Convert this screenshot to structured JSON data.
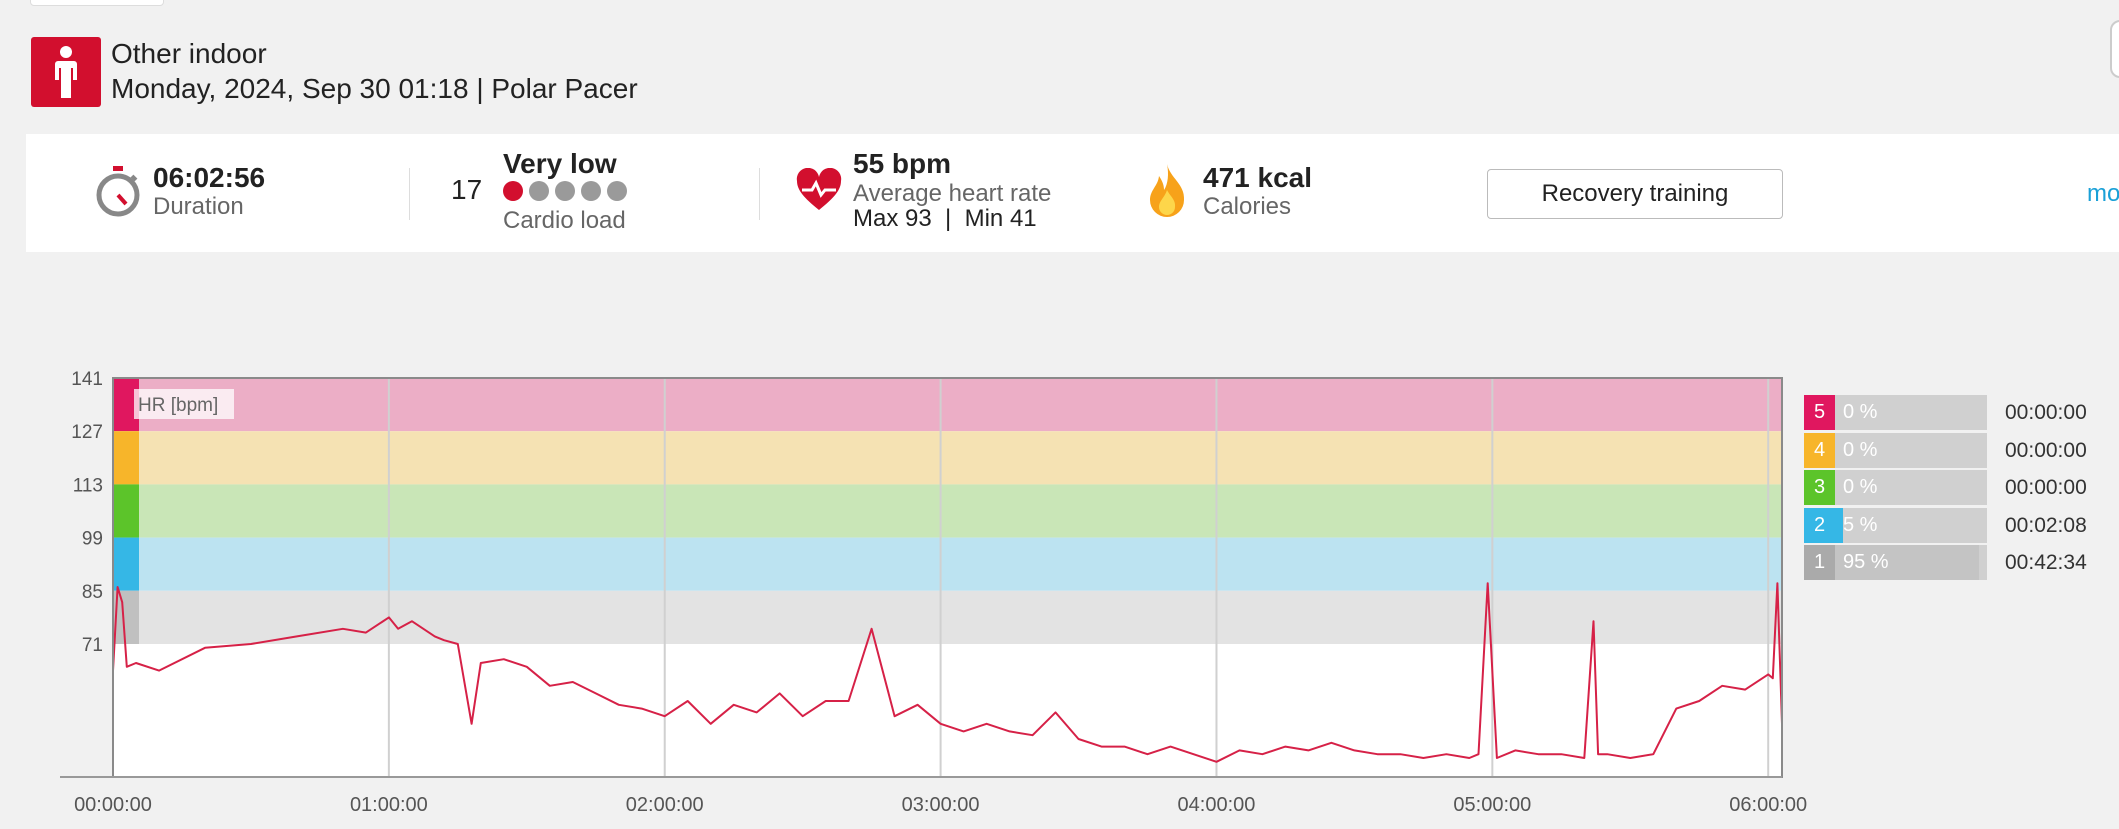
{
  "activity": {
    "sport": "Other indoor",
    "subtitle": "Monday, 2024, Sep 30 01:18 | Polar Pacer"
  },
  "summary": {
    "duration_value": "06:02:56",
    "duration_label": "Duration",
    "cardio_load_value": "17",
    "cardio_load_level": "Very low",
    "cardio_load_label": "Cardio load",
    "cardio_load_dots_filled": 1,
    "cardio_load_dots_total": 5,
    "hr_value": "55 bpm",
    "hr_label": "Average heart rate",
    "hr_minmax": "Max 93  |  Min 41",
    "calories_value": "471 kcal",
    "calories_label": "Calories",
    "training_benefit": "Recovery training",
    "more_link": "mo"
  },
  "colors": {
    "accent_red": "#d20f2e",
    "zone5": "#e0175f",
    "zone4": "#f7b52a",
    "zone3": "#5cc42a",
    "zone2": "#35b7e6",
    "zone1": "#c0c0c0",
    "hr_line": "#d62147"
  },
  "chart_data": {
    "type": "line",
    "title": "",
    "ylabel": "HR [bpm]",
    "xlabel": "",
    "y_ticks": [
      141,
      127,
      113,
      99,
      85,
      71
    ],
    "x_tick_labels": [
      "00:00:00",
      "01:00:00",
      "02:00:00",
      "03:00:00",
      "04:00:00",
      "05:00:00",
      "06:00:00"
    ],
    "x_range_min": [
      0,
      363
    ],
    "ylim": [
      36,
      141
    ],
    "zone_bands": [
      {
        "zone": 5,
        "from": 127,
        "to": 141
      },
      {
        "zone": 4,
        "from": 113,
        "to": 127
      },
      {
        "zone": 3,
        "from": 99,
        "to": 113
      },
      {
        "zone": 2,
        "from": 85,
        "to": 99
      },
      {
        "zone": 1,
        "from": 71,
        "to": 85
      }
    ],
    "series": [
      {
        "name": "HR",
        "x_min": [
          0,
          1,
          2,
          3,
          5,
          10,
          20,
          30,
          40,
          50,
          55,
          60,
          62,
          65,
          70,
          72,
          75,
          78,
          80,
          85,
          90,
          95,
          100,
          105,
          110,
          115,
          120,
          125,
          130,
          135,
          140,
          145,
          150,
          155,
          160,
          165,
          170,
          175,
          180,
          185,
          190,
          195,
          200,
          205,
          210,
          215,
          220,
          225,
          230,
          235,
          240,
          245,
          250,
          255,
          260,
          265,
          270,
          275,
          280,
          285,
          290,
          295,
          297,
          299,
          301,
          305,
          310,
          315,
          320,
          322,
          323,
          325,
          330,
          335,
          340,
          345,
          350,
          355,
          360,
          361,
          362,
          363
        ],
        "values": [
          64,
          86,
          82,
          65,
          66,
          64,
          70,
          71,
          73,
          75,
          74,
          78,
          75,
          77,
          73,
          72,
          71,
          50,
          66,
          67,
          65,
          60,
          61,
          58,
          55,
          54,
          52,
          56,
          50,
          55,
          53,
          58,
          52,
          56,
          56,
          75,
          52,
          55,
          50,
          48,
          50,
          48,
          47,
          53,
          46,
          44,
          44,
          42,
          44,
          42,
          40,
          43,
          42,
          44,
          43,
          45,
          43,
          42,
          42,
          41,
          42,
          41,
          42,
          87,
          41,
          43,
          42,
          42,
          41,
          77,
          42,
          42,
          41,
          42,
          54,
          56,
          60,
          59,
          63,
          62,
          87,
          50
        ]
      }
    ]
  },
  "zones": [
    {
      "num": "5",
      "pct": "0 %",
      "time": "00:00:00",
      "fraction": 0.0
    },
    {
      "num": "4",
      "pct": "0 %",
      "time": "00:00:00",
      "fraction": 0.0
    },
    {
      "num": "3",
      "pct": "0 %",
      "time": "00:00:00",
      "fraction": 0.0
    },
    {
      "num": "2",
      "pct": "5 %",
      "time": "00:02:08",
      "fraction": 0.05
    },
    {
      "num": "1",
      "pct": "95 %",
      "time": "00:42:34",
      "fraction": 0.95
    }
  ]
}
